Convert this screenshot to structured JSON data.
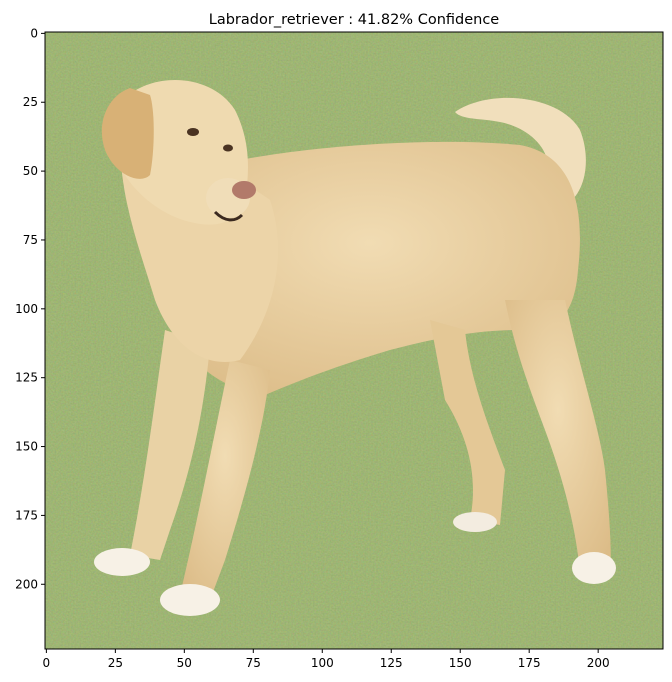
{
  "figure": {
    "title": "Labrador_retriever : 41.82% Confidence",
    "image_subject": "yellow Labrador retriever standing on grass"
  },
  "axes": {
    "x_ticks": [
      0,
      25,
      50,
      75,
      100,
      125,
      150,
      175,
      200
    ],
    "y_ticks": [
      0,
      25,
      50,
      75,
      100,
      125,
      150,
      175,
      200
    ],
    "xlim": [
      -0.5,
      223.5
    ],
    "ylim": [
      223.5,
      -0.5
    ]
  },
  "colors": {
    "grass": "#7a9a4a",
    "dog_fur": "#e8cfa0",
    "dog_light": "#f6ead2"
  }
}
